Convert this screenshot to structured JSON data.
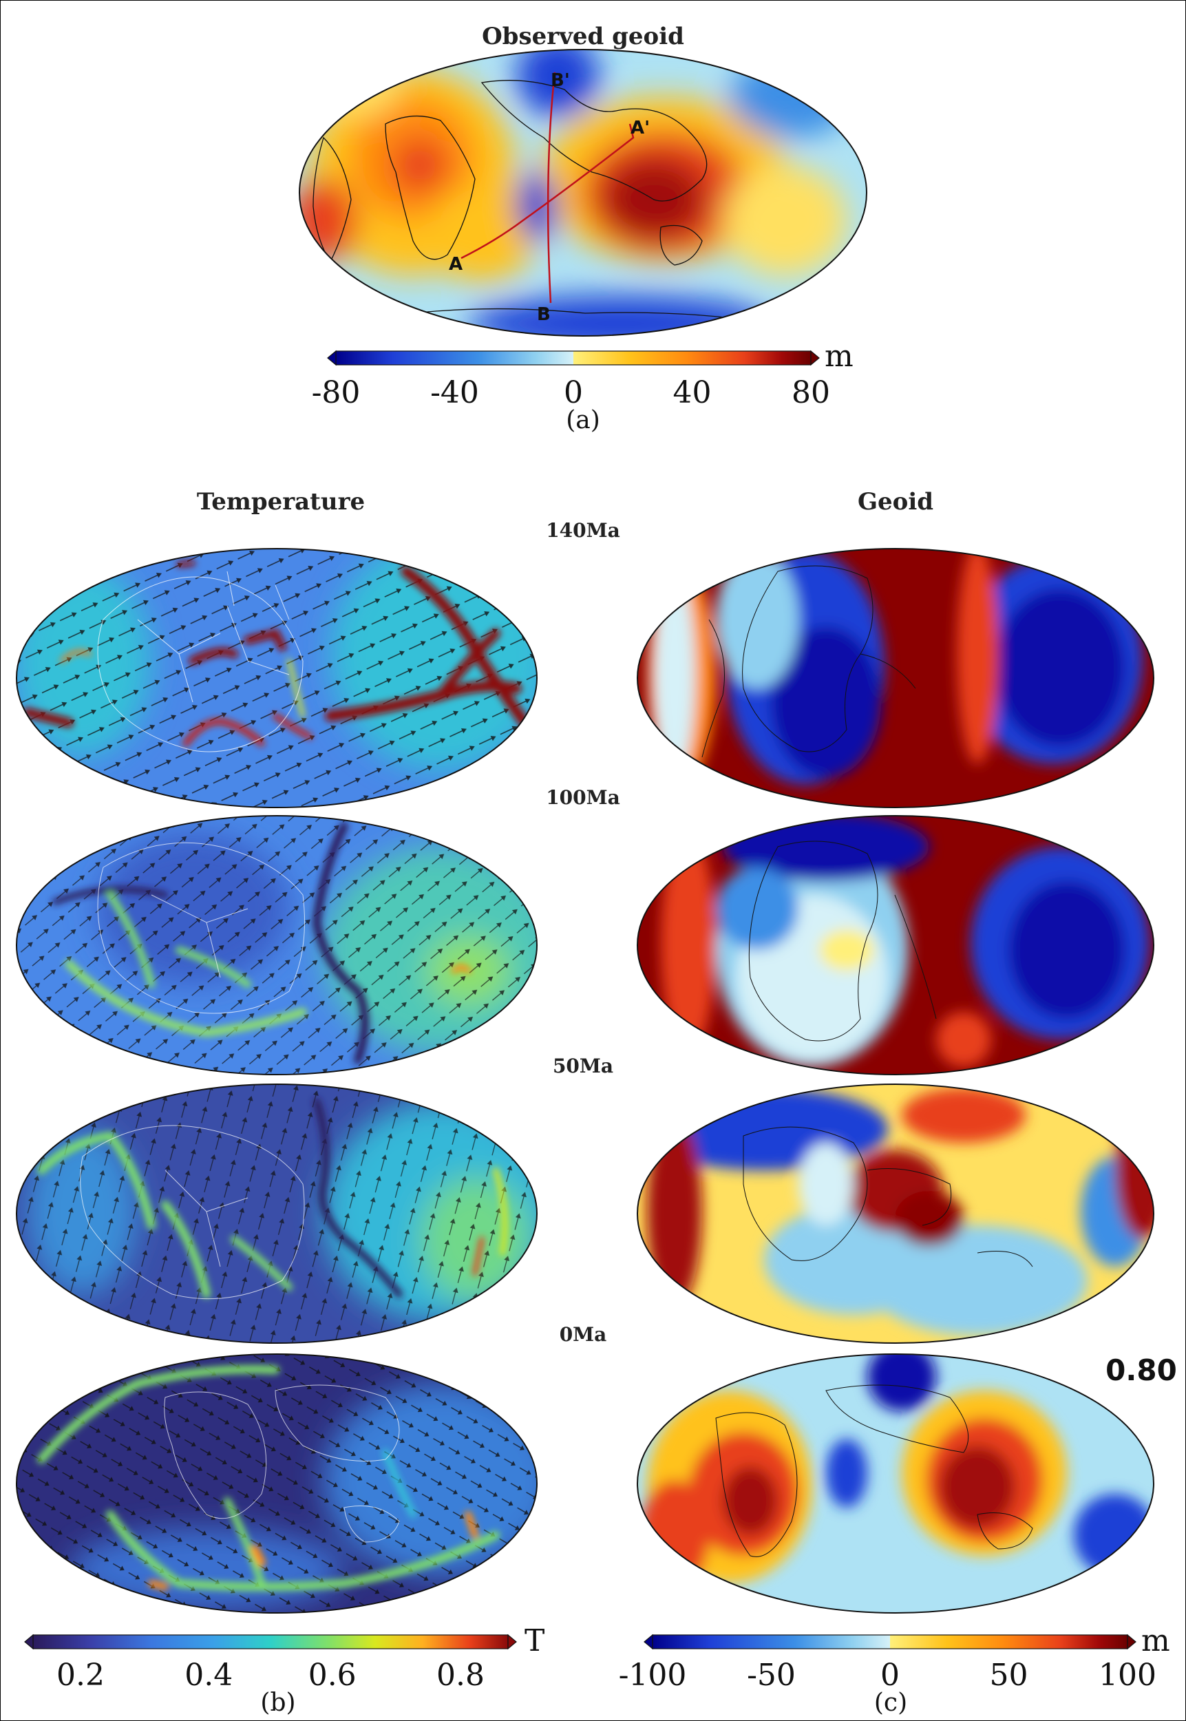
{
  "figure": {
    "panel_a": {
      "title": "Observed geoid",
      "label": "(a)",
      "unit": "m",
      "colorbar_ticks": [
        "-80",
        "-40",
        "0",
        "40",
        "80"
      ],
      "profile_points": [
        "A",
        "A'",
        "B",
        "B'"
      ]
    },
    "panel_b": {
      "title": "Temperature",
      "label": "(b)",
      "unit": "T",
      "colorbar_ticks": [
        "0.2",
        "0.4",
        "0.6",
        "0.8"
      ]
    },
    "panel_c": {
      "title": "Geoid",
      "label": "(c)",
      "unit": "m",
      "colorbar_ticks": [
        "-100",
        "-50",
        "0",
        "50",
        "100"
      ],
      "correlation": "0.80"
    },
    "ages": [
      "140Ma",
      "100Ma",
      "50Ma",
      "0Ma"
    ]
  },
  "colors": {
    "geoid_scale": [
      "#00008b",
      "#1f3fd6",
      "#3c8fe6",
      "#8fd0f0",
      "#d6f1f8",
      "#fff07a",
      "#ffc21a",
      "#ff8a10",
      "#e8401a",
      "#a00808",
      "#6b0000"
    ],
    "temperature_scale": [
      "#2a1a5c",
      "#3a3fa8",
      "#3b78e0",
      "#3aa0e8",
      "#2fd0c8",
      "#7fe06a",
      "#d8e820",
      "#ffb020",
      "#e8401a",
      "#8a0a0a"
    ]
  }
}
